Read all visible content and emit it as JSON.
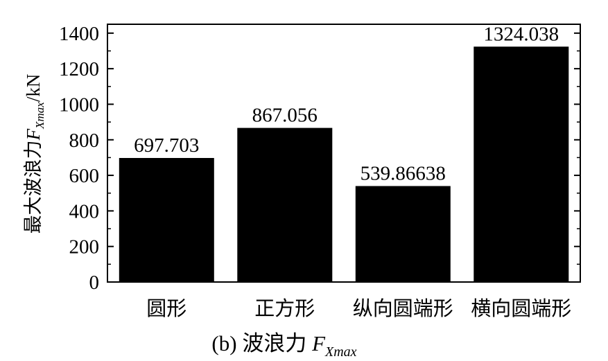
{
  "chart_data": {
    "type": "bar",
    "categories": [
      "圆形",
      "正方形",
      "纵向圆端形",
      "横向圆端形"
    ],
    "values": [
      697.703,
      867.056,
      539.86638,
      1324.038
    ],
    "data_labels": [
      "697.703",
      "867.056",
      "539.86638",
      "1324.038"
    ],
    "ylabel_main": "最大波浪力",
    "ylabel_var": "F",
    "ylabel_sub": "Xmax",
    "ylabel_unit": "/kN",
    "ylim": [
      0,
      1450
    ],
    "yticks": [
      0,
      200,
      400,
      600,
      800,
      1000,
      1200,
      1400
    ],
    "bar_color": "#000000",
    "grid": false,
    "caption": {
      "prefix": "(b)  波浪力 ",
      "var": "F",
      "sub": "Xmax"
    }
  }
}
